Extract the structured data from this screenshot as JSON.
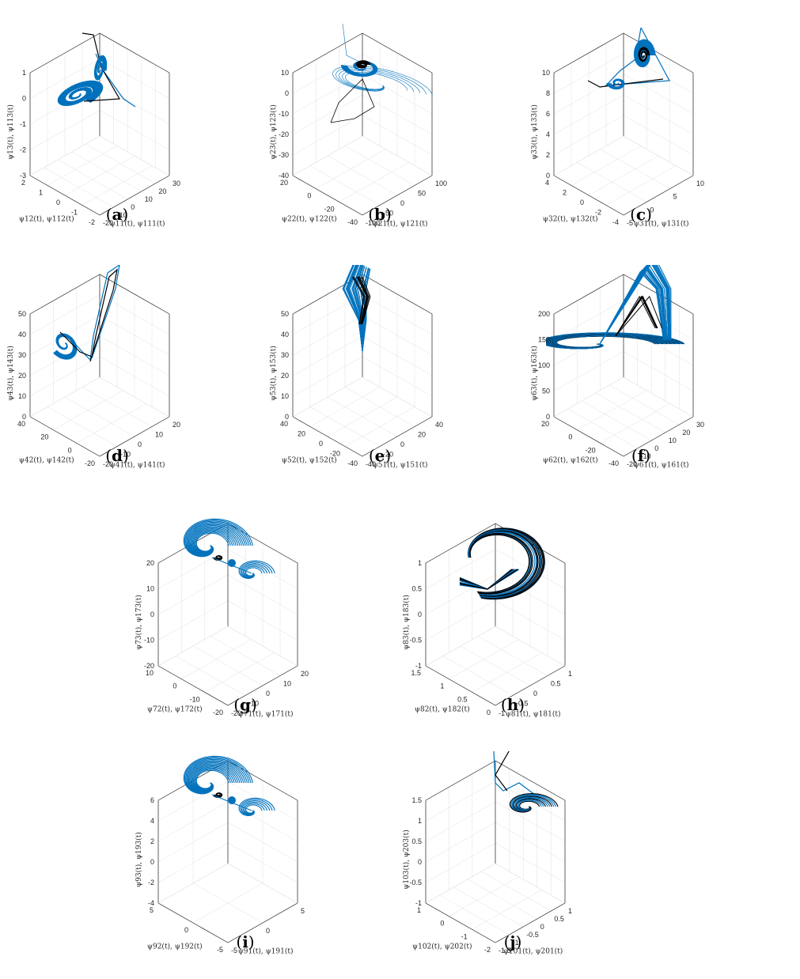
{
  "figure": {
    "series_colors": {
      "drive": "#000000",
      "response": "#0072BD"
    }
  },
  "chart_data": [
    {
      "id": "a",
      "label": "a",
      "type": "scatter",
      "xlabel": "ψ11(t), ψ111(t)",
      "ylabel": "ψ12(t), ψ112(t)",
      "zlabel": "ψ13(t), ψ113(t)",
      "x_ticks": [
        "-20",
        "-10",
        "0",
        "10",
        "20",
        "30"
      ],
      "y_ticks": [
        "-2",
        "-1",
        "0",
        "1",
        "2"
      ],
      "z_ticks": [
        "-3",
        "-2",
        "-1",
        "0",
        "1"
      ],
      "xlim": [
        -20,
        30
      ],
      "ylim": [
        -2,
        2
      ],
      "zlim": [
        -3,
        1
      ],
      "grid": true,
      "attractor": "spiral-wing",
      "series": [
        "drive",
        "response"
      ]
    },
    {
      "id": "b",
      "label": "b",
      "type": "scatter",
      "xlabel": "ψ21(t), ψ121(t)",
      "ylabel": "ψ22(t), ψ122(t)",
      "zlabel": "ψ23(t), ψ123(t)",
      "x_ticks": [
        "-100",
        "-50",
        "0",
        "50",
        "100"
      ],
      "y_ticks": [
        "-40",
        "-20",
        "0",
        "20"
      ],
      "z_ticks": [
        "-40",
        "-30",
        "-20",
        "-10",
        "0",
        "10"
      ],
      "xlim": [
        -100,
        100
      ],
      "ylim": [
        -40,
        20
      ],
      "zlim": [
        -40,
        10
      ],
      "grid": true,
      "attractor": "loops",
      "series": [
        "drive",
        "response"
      ]
    },
    {
      "id": "c",
      "label": "c",
      "type": "scatter",
      "xlabel": "ψ31(t), ψ131(t)",
      "ylabel": "ψ32(t), ψ132(t)",
      "zlabel": "ψ33(t), ψ133(t)",
      "x_ticks": [
        "-5",
        "0",
        "5",
        "10"
      ],
      "y_ticks": [
        "-4",
        "-2",
        "0",
        "2",
        "4"
      ],
      "z_ticks": [
        "0",
        "2",
        "4",
        "6",
        "8",
        "10"
      ],
      "xlim": [
        -5,
        10
      ],
      "ylim": [
        -4,
        4
      ],
      "zlim": [
        0,
        10
      ],
      "grid": true,
      "attractor": "triangle",
      "series": [
        "drive",
        "response"
      ]
    },
    {
      "id": "d",
      "label": "d",
      "type": "scatter",
      "xlabel": "ψ41(t), ψ141(t)",
      "ylabel": "ψ42(t), ψ142(t)",
      "zlabel": "ψ43(t), ψ143(t)",
      "x_ticks": [
        "-20",
        "-10",
        "0",
        "10",
        "20"
      ],
      "y_ticks": [
        "-20",
        "0",
        "20",
        "40"
      ],
      "z_ticks": [
        "0",
        "10",
        "20",
        "30",
        "40",
        "50"
      ],
      "xlim": [
        -20,
        20
      ],
      "ylim": [
        -20,
        40
      ],
      "zlim": [
        0,
        50
      ],
      "grid": true,
      "attractor": "two-lobes",
      "series": [
        "drive",
        "response"
      ]
    },
    {
      "id": "e",
      "label": "e",
      "type": "scatter",
      "xlabel": "ψ51(t), ψ151(t)",
      "ylabel": "ψ52(t), ψ152(t)",
      "zlabel": "ψ53(t), ψ153(t)",
      "x_ticks": [
        "-40",
        "-20",
        "0",
        "20",
        "40"
      ],
      "y_ticks": [
        "-40",
        "-20",
        "0",
        "20",
        "40"
      ],
      "z_ticks": [
        "0",
        "10",
        "20",
        "30",
        "40",
        "50"
      ],
      "xlim": [
        -40,
        40
      ],
      "ylim": [
        -40,
        40
      ],
      "zlim": [
        0,
        50
      ],
      "grid": true,
      "attractor": "narrow",
      "series": [
        "drive",
        "response"
      ]
    },
    {
      "id": "f",
      "label": "f",
      "type": "scatter",
      "xlabel": "ψ61(t), ψ161(t)",
      "ylabel": "ψ62(t), ψ162(t)",
      "zlabel": "ψ63(t), ψ163(t)",
      "x_ticks": [
        "-20",
        "-10",
        "0",
        "10",
        "20",
        "30"
      ],
      "y_ticks": [
        "-40",
        "-20",
        "0",
        "20"
      ],
      "z_ticks": [
        "0",
        "50",
        "100",
        "150",
        "200"
      ],
      "xlim": [
        -20,
        30
      ],
      "ylim": [
        -40,
        20
      ],
      "zlim": [
        0,
        200
      ],
      "grid": true,
      "attractor": "flat-disc",
      "series": [
        "drive",
        "response"
      ]
    },
    {
      "id": "g",
      "label": "g",
      "type": "scatter",
      "xlabel": "ψ71(t), ψ171(t)",
      "ylabel": "ψ72(t), ψ172(t)",
      "zlabel": "ψ73(t), ψ173(t)",
      "x_ticks": [
        "-20",
        "-10",
        "0",
        "10",
        "20"
      ],
      "y_ticks": [
        "-20",
        "-10",
        "0",
        "10"
      ],
      "z_ticks": [
        "-20",
        "-10",
        "0",
        "10",
        "20"
      ],
      "xlim": [
        -20,
        20
      ],
      "ylim": [
        -20,
        10
      ],
      "zlim": [
        -20,
        20
      ],
      "grid": true,
      "attractor": "double-scroll",
      "series": [
        "drive",
        "response"
      ]
    },
    {
      "id": "h",
      "label": "h",
      "type": "scatter",
      "xlabel": "ψ81(t), ψ181(t)",
      "ylabel": "ψ82(t), ψ182(t)",
      "zlabel": "ψ83(t), ψ183(t)",
      "x_ticks": [
        "-1",
        "-0.5",
        "0",
        "0.5",
        "1"
      ],
      "y_ticks": [
        "0",
        "0.5",
        "1",
        "1.5"
      ],
      "z_ticks": [
        "-1",
        "-0.5",
        "0",
        "0.5",
        "1"
      ],
      "xlim": [
        -1,
        1
      ],
      "ylim": [
        0,
        1.5
      ],
      "zlim": [
        -1,
        1
      ],
      "grid": true,
      "attractor": "dense-shell",
      "series": [
        "drive",
        "response"
      ]
    },
    {
      "id": "i",
      "label": "i",
      "type": "scatter",
      "xlabel": "ψ91(t), ψ191(t)",
      "ylabel": "ψ92(t), ψ192(t)",
      "zlabel": "ψ93(t), ψ193(t)",
      "x_ticks": [
        "-5",
        "0",
        "5"
      ],
      "y_ticks": [
        "-5",
        "0",
        "5"
      ],
      "z_ticks": [
        "-4",
        "-2",
        "0",
        "2",
        "4",
        "6"
      ],
      "xlim": [
        -5,
        5
      ],
      "ylim": [
        -5,
        5
      ],
      "zlim": [
        -4,
        6
      ],
      "grid": true,
      "attractor": "double-scroll",
      "series": [
        "drive",
        "response"
      ]
    },
    {
      "id": "j",
      "label": "j",
      "type": "scatter",
      "xlabel": "ψ101(t), ψ201(t)",
      "ylabel": "ψ102(t), ψ202(t)",
      "zlabel": "ψ103(t), ψ203(t)",
      "x_ticks": [
        "-1.5",
        "-1",
        "-0.5",
        "0",
        "0.5",
        "1"
      ],
      "y_ticks": [
        "-2",
        "-1",
        "0",
        "1"
      ],
      "z_ticks": [
        "-1",
        "-0.5",
        "0",
        "0.5",
        "1",
        "1.5"
      ],
      "xlim": [
        -1.5,
        1
      ],
      "ylim": [
        -2,
        1
      ],
      "zlim": [
        -1,
        1.5
      ],
      "grid": true,
      "attractor": "hook-spiral",
      "series": [
        "drive",
        "response"
      ]
    }
  ]
}
